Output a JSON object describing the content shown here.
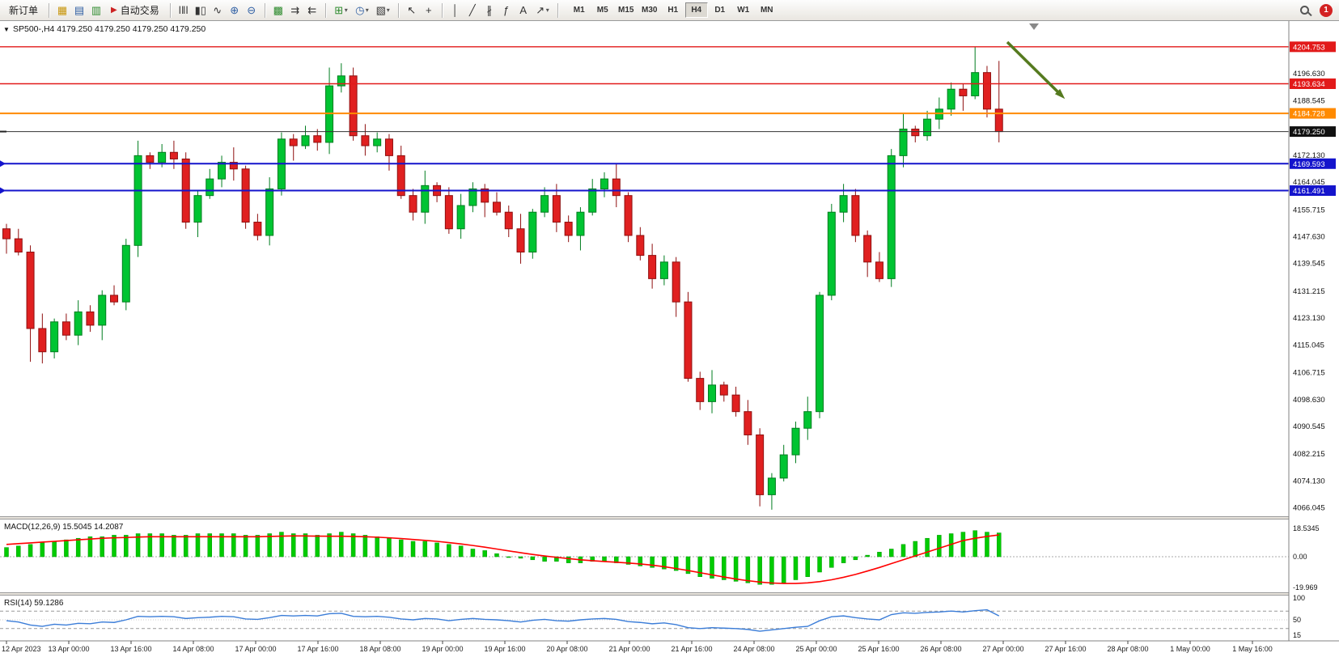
{
  "toolbar": {
    "new_order": "新订单",
    "autotrade": "自动交易",
    "timeframes": [
      "M1",
      "M5",
      "M15",
      "M30",
      "H1",
      "H4",
      "D1",
      "W1",
      "MN"
    ],
    "active_timeframe": "H4",
    "notification_count": "1",
    "icons": {
      "market_watch": "▦",
      "navigator": "▤",
      "terminal": "▥",
      "autotrade_play": "▶",
      "bar_chart": "ǀǁǀ",
      "candle_chart": "▮▯",
      "line_chart": "∿",
      "zoom_in": "⊕",
      "zoom_out": "⊖",
      "tile_windows": "▩",
      "auto_scroll": "⇉",
      "chart_shift": "⇇",
      "indicators": "⊞",
      "periods": "◷",
      "templates": "▧",
      "cursor": "↖",
      "crosshair": "+",
      "vline": "│",
      "trendline": "╱",
      "channel": "∦",
      "fibo": "ƒ",
      "text_tool": "A",
      "arrows_tool": "↗",
      "dropdown": "▾"
    }
  },
  "chart_window": {
    "menu_glyph": "▼",
    "title_symbol_period": "SP500-,H4",
    "title_ohlc": "4179.250 4179.250 4179.250 4179.250",
    "price_axis_labels": [
      "4196.630",
      "4188.545",
      "4172.130",
      "4164.045",
      "4155.715",
      "4147.630",
      "4139.545",
      "4131.215",
      "4123.130",
      "4115.045",
      "4106.715",
      "4098.630",
      "4090.545",
      "4082.215",
      "4074.130",
      "4066.045"
    ],
    "hlines": [
      {
        "price": 4204.753,
        "label": "4204.753",
        "color": "#e21a1a",
        "width": 1.4,
        "left_marker": false
      },
      {
        "price": 4193.634,
        "label": "4193.634",
        "color": "#e21a1a",
        "width": 1.4,
        "left_marker": false
      },
      {
        "price": 4184.728,
        "label": "4184.728",
        "color": "#ff8a00",
        "width": 2,
        "left_marker": false
      },
      {
        "price": 4169.593,
        "label": "4169.593",
        "color": "#1414cc",
        "width": 2,
        "left_marker": true
      },
      {
        "price": 4161.491,
        "label": "4161.491",
        "color": "#1414cc",
        "width": 2,
        "left_marker": true
      }
    ],
    "current_price": {
      "value": 4179.25,
      "label": "4179.250"
    },
    "time_labels": [
      "12 Apr 2023",
      "13 Apr 00:00",
      "13 Apr 16:00",
      "14 Apr 08:00",
      "17 Apr 00:00",
      "17 Apr 16:00",
      "18 Apr 08:00",
      "19 Apr 00:00",
      "19 Apr 16:00",
      "20 Apr 08:00",
      "21 Apr 00:00",
      "21 Apr 16:00",
      "24 Apr 08:00",
      "25 Apr 00:00",
      "25 Apr 16:00",
      "26 Apr 08:00",
      "27 Apr 00:00",
      "27 Apr 16:00",
      "28 Apr 08:00",
      "1 May 00:00",
      "1 May 16:00"
    ],
    "macd": {
      "label": "MACD(12,26,9)",
      "value_main": "15.5045",
      "value_signal": "14.2087",
      "axis_labels": [
        "18.5345",
        "0.00",
        "-19.969"
      ],
      "axis_values": [
        18.5345,
        0,
        -19.969
      ]
    },
    "rsi": {
      "label": "RSI(14)",
      "value": "59.1286",
      "axis_labels": [
        "100",
        "50",
        "15"
      ],
      "axis_values": [
        100,
        50,
        15
      ],
      "levels": [
        70,
        30
      ]
    }
  },
  "chart_data": {
    "type": "candlestick",
    "symbol": "SP500-",
    "period": "H4",
    "first_open": 4150,
    "closes": [
      4147,
      4143,
      4120,
      4113,
      4122,
      4118,
      4125,
      4121,
      4130,
      4128,
      4145,
      4172,
      4170,
      4173,
      4171,
      4152,
      4160,
      4165,
      4170,
      4168,
      4152,
      4148,
      4162,
      4177,
      4175,
      4178,
      4176,
      4193,
      4196,
      4178,
      4175,
      4177,
      4172,
      4160,
      4155,
      4163,
      4160,
      4150,
      4157,
      4162,
      4158,
      4155,
      4150,
      4143,
      4155,
      4160,
      4152,
      4148,
      4155,
      4162,
      4165,
      4160,
      4148,
      4142,
      4135,
      4140,
      4128,
      4105,
      4098,
      4103,
      4100,
      4095,
      4088,
      4070,
      4075,
      4082,
      4090,
      4095,
      4130,
      4155,
      4160,
      4148,
      4140,
      4135,
      4172,
      4180,
      4178,
      4183,
      4186,
      4192,
      4190,
      4197,
      4186,
      4179.25
    ],
    "wick_overrides": {
      "2": {
        "low": 4110
      },
      "27": {
        "high": 4198.5
      },
      "28": {
        "high": 4199.8
      },
      "63": {
        "low": 4066.5
      },
      "81": {
        "high": 4204.8
      },
      "83": {
        "high": 4200.5,
        "low": 4176
      }
    },
    "macd_hist": [
      6,
      7,
      8,
      9,
      10,
      11,
      12,
      13,
      13,
      14,
      14,
      15,
      15,
      15,
      14,
      14,
      15,
      15,
      15,
      15,
      14,
      14,
      15,
      16,
      15,
      15,
      14,
      15,
      16,
      15,
      14,
      13,
      12,
      11,
      10,
      10,
      9,
      8,
      7,
      5,
      4,
      2,
      0,
      -1,
      -2,
      -3,
      -3,
      -4,
      -4,
      -3,
      -3,
      -4,
      -5,
      -6,
      -7,
      -8,
      -9,
      -11,
      -13,
      -14,
      -15,
      -16,
      -17,
      -18,
      -18,
      -17,
      -15,
      -13,
      -10,
      -7,
      -4,
      -2,
      1,
      3,
      5,
      8,
      10,
      12,
      14,
      15,
      16,
      17,
      16,
      15.5
    ],
    "macd_signal": [
      8,
      8.5,
      9,
      9.5,
      10,
      10.5,
      11,
      11.5,
      12,
      12.3,
      12.5,
      12.8,
      13,
      13,
      13,
      13,
      13,
      13,
      13,
      13,
      13,
      13,
      13.2,
      13.4,
      13.5,
      13.5,
      13.4,
      13.3,
      13.3,
      13.2,
      13,
      12.7,
      12.3,
      11.8,
      11.2,
      10.6,
      10,
      9.2,
      8.3,
      7.3,
      6.2,
      5,
      3.8,
      2.6,
      1.5,
      0.5,
      -0.4,
      -1.2,
      -2,
      -2.6,
      -3.1,
      -3.6,
      -4.1,
      -4.7,
      -5.5,
      -6.5,
      -7.7,
      -9,
      -10.4,
      -11.8,
      -13.2,
      -14.5,
      -15.6,
      -16.5,
      -17.1,
      -17.4,
      -17.4,
      -17,
      -16.2,
      -15,
      -13.4,
      -11.5,
      -9.3,
      -7,
      -4.5,
      -2,
      0.5,
      3,
      5.5,
      8,
      10.5,
      12,
      13.2,
      14.2
    ],
    "rsi_values": [
      48,
      45,
      38,
      35,
      40,
      38,
      42,
      41,
      45,
      44,
      50,
      58,
      57,
      58,
      57,
      53,
      55,
      56,
      58,
      57,
      52,
      51,
      55,
      60,
      59,
      60,
      59,
      64,
      65,
      58,
      57,
      58,
      56,
      52,
      50,
      53,
      52,
      48,
      51,
      53,
      51,
      50,
      48,
      45,
      49,
      51,
      48,
      47,
      50,
      52,
      53,
      51,
      46,
      44,
      41,
      43,
      39,
      32,
      30,
      32,
      31,
      30,
      28,
      24,
      27,
      30,
      33,
      35,
      48,
      57,
      59,
      55,
      52,
      50,
      62,
      66,
      65,
      67,
      68,
      70,
      68,
      71,
      73,
      59.13
    ]
  },
  "colors": {
    "candle_up": "#00c432",
    "candle_up_border": "#007d1f",
    "candle_down": "#e02020",
    "candle_down_border": "#8f0f0f",
    "macd_hist": "#00cc00",
    "macd_signal": "#ff0000",
    "rsi_line": "#3b7dd8",
    "annotation_arrow": "#557a1f"
  }
}
